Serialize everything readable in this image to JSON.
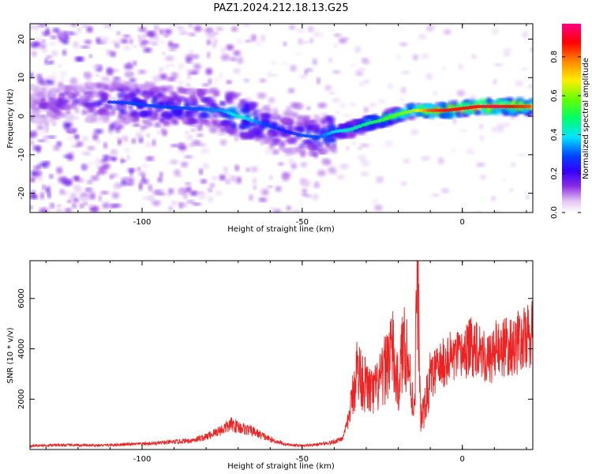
{
  "title": "PAZ1.2024.212.18.13.G25",
  "chart_data": [
    {
      "type": "heatmap",
      "xlabel": "Height of straight line (km)",
      "ylabel": "Frequency (Hz)",
      "xlim": [
        -135,
        22
      ],
      "ylim": [
        -25,
        24
      ],
      "x_ticks": [
        -100,
        -50,
        0
      ],
      "y_ticks": [
        -20,
        -10,
        0,
        10,
        20
      ],
      "colorbar": {
        "label": "Normalized spectral amplitude",
        "ticks": [
          "0.0",
          "0.2",
          "0.4",
          "0.6",
          "0.8"
        ],
        "range": [
          0,
          0.97
        ],
        "colormap": [
          "#ffffff",
          "#e2c6f4",
          "#8a2be2",
          "#3300ff",
          "#0044ff",
          "#00e5ff",
          "#00ff66",
          "#66ff00",
          "#ffee00",
          "#ff8800",
          "#ff0000",
          "#ff0088"
        ]
      },
      "ridge": {
        "x": [
          -135,
          -120,
          -105,
          -95,
          -85,
          -75,
          -70,
          -62,
          -55,
          -50,
          -45,
          -40,
          -35,
          -30,
          -25,
          -20,
          -15,
          -10,
          -5,
          0,
          5,
          10,
          15,
          22
        ],
        "frequency": [
          3,
          4,
          3.5,
          2.5,
          2,
          1.5,
          0,
          -2,
          -4,
          -5,
          -5.5,
          -4,
          -3.5,
          -2,
          -1,
          0.5,
          1.5,
          1.5,
          1.5,
          2,
          2.5,
          2.5,
          2.5,
          2.5
        ],
        "amplitude": [
          0.15,
          0.2,
          0.3,
          0.3,
          0.3,
          0.35,
          0.45,
          0.3,
          0.25,
          0.3,
          0.3,
          0.4,
          0.45,
          0.5,
          0.55,
          0.6,
          0.65,
          0.85,
          0.9,
          0.9,
          0.92,
          0.95,
          0.9,
          0.85
        ]
      }
    },
    {
      "type": "line",
      "xlabel": "Height of straight line (km)",
      "ylabel": "SNR (10 * v/v)",
      "xlim": [
        -135,
        22
      ],
      "ylim": [
        0,
        7500
      ],
      "x_ticks": [
        -100,
        -50,
        0
      ],
      "y_ticks": [
        2000,
        4000,
        6000
      ],
      "series": [
        {
          "color": "#ee2222",
          "x": [
            -135,
            -125,
            -115,
            -105,
            -95,
            -85,
            -80,
            -75,
            -72,
            -70,
            -65,
            -60,
            -55,
            -50,
            -45,
            -40,
            -37,
            -35,
            -33,
            -30,
            -28,
            -25,
            -22,
            -21,
            -20,
            -18,
            -16,
            -15,
            -14,
            -13,
            -12,
            -10,
            -8,
            -5,
            -3,
            -1,
            0,
            2,
            5,
            8,
            10,
            12,
            15,
            18,
            20,
            22
          ],
          "y": [
            150,
            180,
            160,
            200,
            250,
            350,
            500,
            800,
            1000,
            900,
            700,
            400,
            200,
            150,
            200,
            300,
            500,
            1500,
            3200,
            2500,
            2200,
            2800,
            4200,
            3000,
            2500,
            4500,
            2500,
            1500,
            7300,
            1200,
            1500,
            2800,
            3200,
            3500,
            3700,
            3600,
            3800,
            4000,
            4200,
            3500,
            3900,
            4100,
            4000,
            4300,
            4400,
            4600
          ]
        }
      ]
    }
  ]
}
